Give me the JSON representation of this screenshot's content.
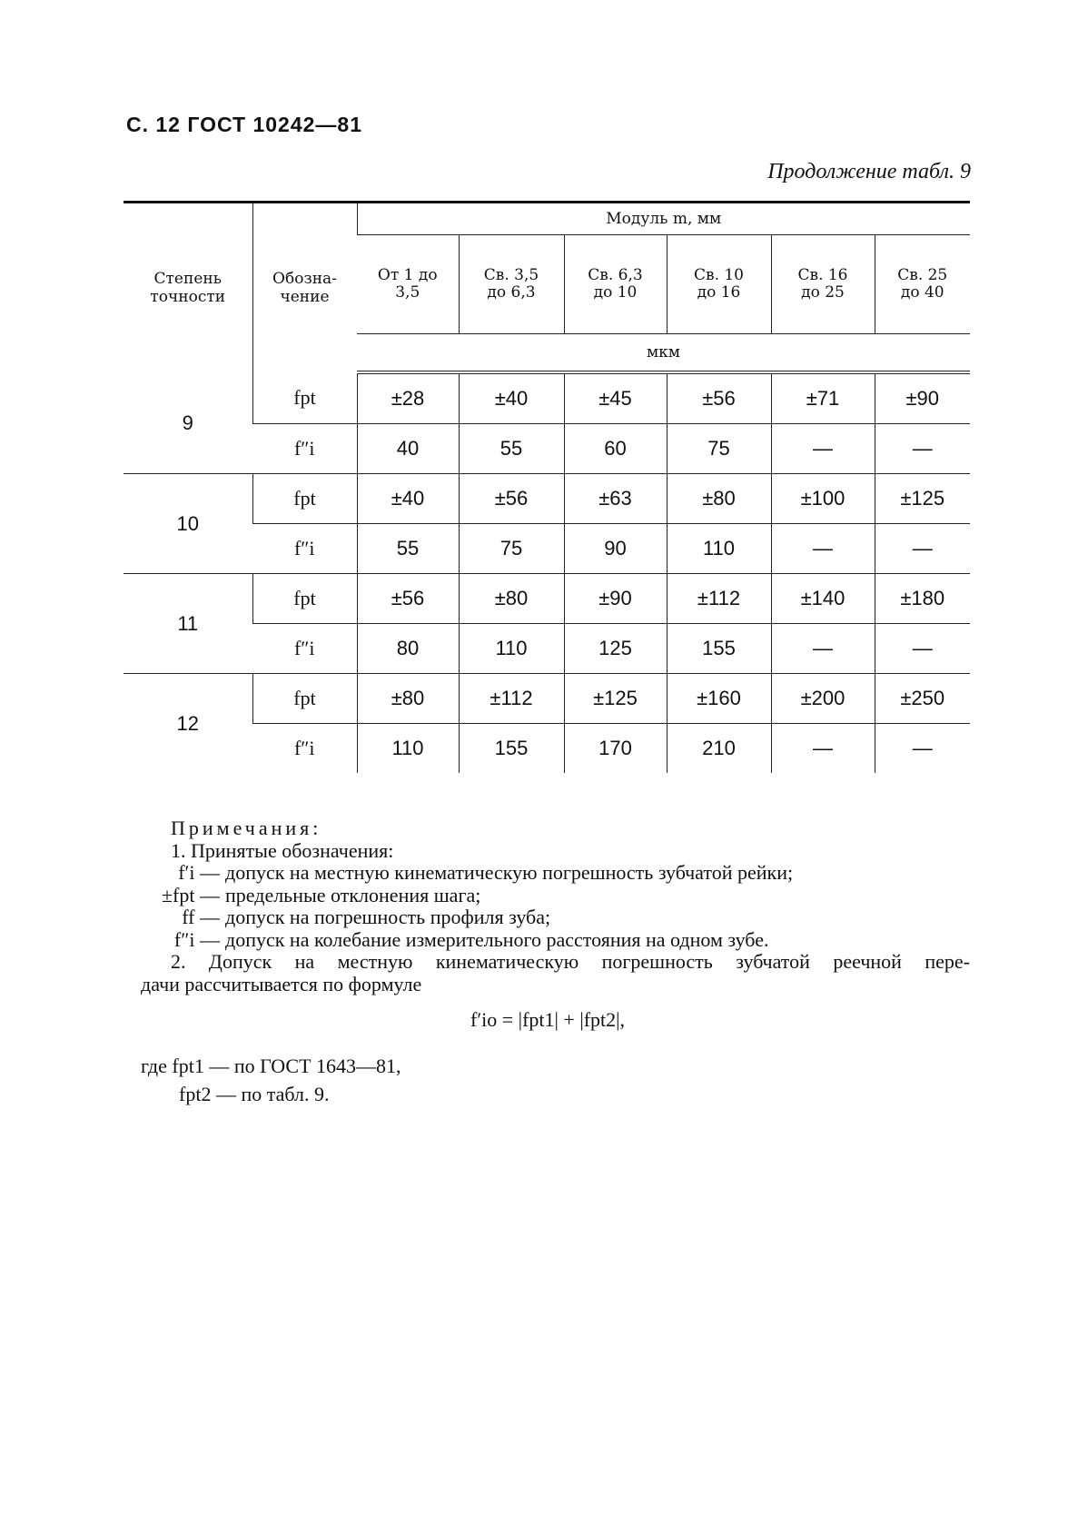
{
  "header": {
    "page_ref": "С. 12 ГОСТ 10242—81",
    "continuation": "Продолжение табл. 9"
  },
  "table": {
    "col_degree": "Степень точности",
    "col_symbol": "Обозна-чение",
    "module_header": "Модуль m, мм",
    "ranges": [
      "От 1 до 3,5",
      "Св. 3,5 до 6,3",
      "Св. 6,3 до 10",
      "Св. 10 до 16",
      "Св. 16 до 25",
      "Св. 25 до 40"
    ],
    "unit": "мкм",
    "groups": [
      {
        "degree": "9",
        "rows": [
          {
            "symbol": "fpt",
            "values": [
              "±28",
              "±40",
              "±45",
              "±56",
              "±71",
              "±90"
            ]
          },
          {
            "symbol": "f″i",
            "values": [
              "40",
              "55",
              "60",
              "75",
              "—",
              "—"
            ]
          }
        ]
      },
      {
        "degree": "10",
        "rows": [
          {
            "symbol": "fpt",
            "values": [
              "±40",
              "±56",
              "±63",
              "±80",
              "±100",
              "±125"
            ]
          },
          {
            "symbol": "f″i",
            "values": [
              "55",
              "75",
              "90",
              "110",
              "—",
              "—"
            ]
          }
        ]
      },
      {
        "degree": "11",
        "rows": [
          {
            "symbol": "fpt",
            "values": [
              "±56",
              "±80",
              "±90",
              "±112",
              "±140",
              "±180"
            ]
          },
          {
            "symbol": "f″i",
            "values": [
              "80",
              "110",
              "125",
              "155",
              "—",
              "—"
            ]
          }
        ]
      },
      {
        "degree": "12",
        "rows": [
          {
            "symbol": "fpt",
            "values": [
              "±80",
              "±112",
              "±125",
              "±160",
              "±200",
              "±250"
            ]
          },
          {
            "symbol": "f″i",
            "values": [
              "110",
              "155",
              "170",
              "210",
              "—",
              "—"
            ]
          }
        ]
      }
    ]
  },
  "notes": {
    "title": "Примечания:",
    "item1": "1. Принятые обозначения:",
    "defs": [
      {
        "sym": "f′i —",
        "text": "допуск на местную кинематическую погрешность зубчатой рейки;"
      },
      {
        "sym": "±fpt —",
        "text": "предельные отклонения шага;"
      },
      {
        "sym": "ff —",
        "text": "допуск на погрешность профиля зуба;"
      },
      {
        "sym": "f″i —",
        "text": "допуск на колебание измерительного расстояния на одном зубе."
      }
    ],
    "item2_line1": "2. Допуск на местную кинематическую погрешность зубчатой реечной пере-",
    "item2_line2": "дачи рассчитывается по формуле",
    "formula": "f′io = |fpt1| + |fpt2|,",
    "where1": "где fpt1 — по ГОСТ 1643—81,",
    "where2": "fpt2 — по табл. 9."
  }
}
